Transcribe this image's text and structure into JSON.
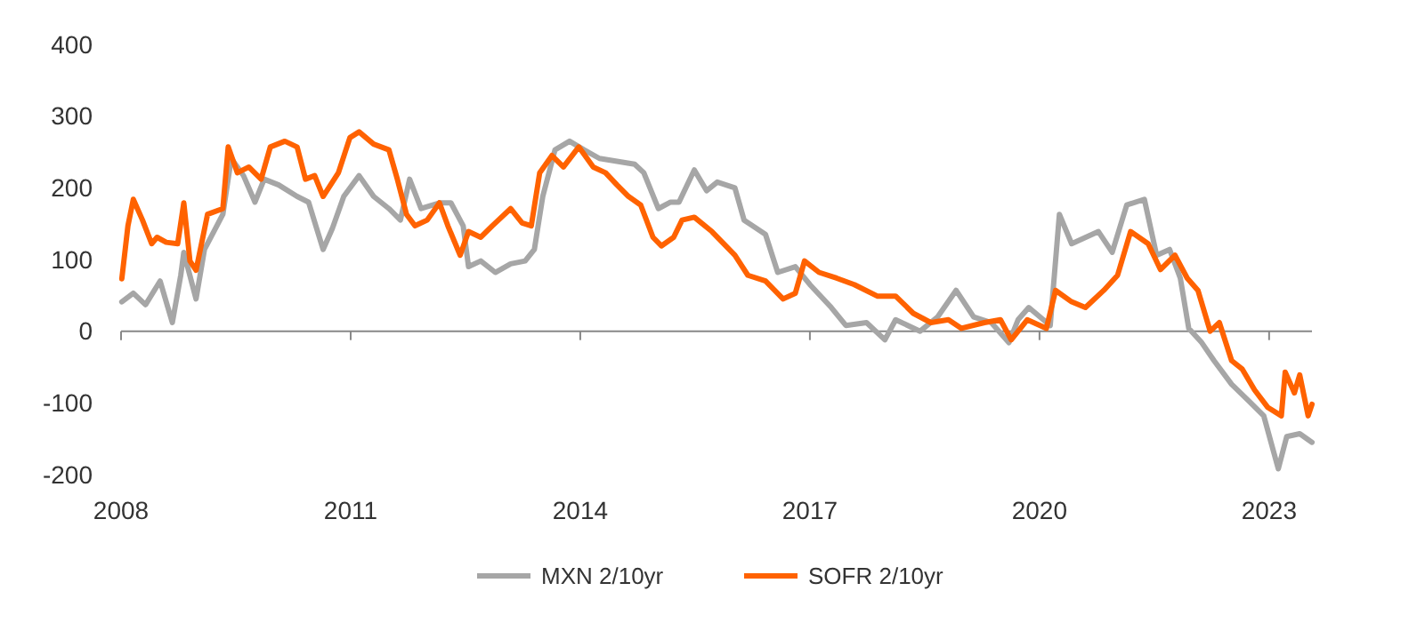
{
  "chart_data": {
    "type": "line",
    "xlim": [
      2008,
      2023.56
    ],
    "xticks": [
      2008,
      2011,
      2014,
      2017,
      2020,
      2023
    ],
    "ylim": [
      -200,
      400
    ],
    "yticks": [
      -200,
      -100,
      0,
      100,
      200,
      300,
      400
    ],
    "legend": "bottom",
    "line_style": "solid",
    "marker": "none",
    "series": [
      {
        "name": "MXN 2/10yr",
        "color": "#a6a6a6",
        "x": [
          2008.01,
          2008.16,
          2008.32,
          2008.51,
          2008.67,
          2008.78,
          2008.82,
          2008.98,
          2009.09,
          2009.33,
          2009.44,
          2009.6,
          2009.75,
          2009.87,
          2010.06,
          2010.3,
          2010.45,
          2010.64,
          2010.76,
          2010.91,
          2011.11,
          2011.3,
          2011.5,
          2011.65,
          2011.77,
          2011.92,
          2012.16,
          2012.31,
          2012.47,
          2012.54,
          2012.7,
          2012.89,
          2013.09,
          2013.28,
          2013.4,
          2013.51,
          2013.67,
          2013.86,
          2014.05,
          2014.25,
          2014.48,
          2014.71,
          2014.83,
          2015.02,
          2015.18,
          2015.29,
          2015.49,
          2015.65,
          2015.79,
          2016.02,
          2016.14,
          2016.42,
          2016.58,
          2016.81,
          2017.0,
          2017.28,
          2017.47,
          2017.74,
          2017.98,
          2018.12,
          2018.44,
          2018.67,
          2018.91,
          2019.14,
          2019.37,
          2019.6,
          2019.72,
          2019.86,
          2020.14,
          2020.26,
          2020.42,
          2020.77,
          2020.95,
          2021.14,
          2021.37,
          2021.53,
          2021.7,
          2021.84,
          2021.95,
          2022.12,
          2022.28,
          2022.51,
          2022.74,
          2022.93,
          2023.12,
          2023.23,
          2023.4,
          2023.56
        ],
        "values": [
          41,
          53,
          37,
          70,
          12,
          78,
          110,
          45,
          114,
          163,
          241,
          217,
          180,
          212,
          204,
          188,
          180,
          114,
          143,
          188,
          217,
          188,
          171,
          155,
          212,
          171,
          179,
          179,
          147,
          90,
          98,
          82,
          94,
          98,
          114,
          188,
          253,
          265,
          253,
          241,
          237,
          233,
          221,
          171,
          180,
          180,
          225,
          196,
          208,
          200,
          155,
          135,
          82,
          90,
          65,
          33,
          8,
          12,
          -12,
          16,
          0,
          20,
          57,
          20,
          12,
          -16,
          16,
          33,
          8,
          163,
          122,
          139,
          110,
          176,
          184,
          106,
          114,
          74,
          4,
          -16,
          -41,
          -74,
          -98,
          -118,
          -192,
          -147,
          -143,
          -155
        ]
      },
      {
        "name": "SOFR 2/10yr",
        "color": "#ff6200",
        "x": [
          2008.01,
          2008.09,
          2008.16,
          2008.28,
          2008.4,
          2008.47,
          2008.59,
          2008.74,
          2008.82,
          2008.9,
          2008.98,
          2009.13,
          2009.33,
          2009.4,
          2009.52,
          2009.67,
          2009.83,
          2009.95,
          2010.14,
          2010.3,
          2010.41,
          2010.53,
          2010.64,
          2010.84,
          2010.99,
          2011.11,
          2011.3,
          2011.5,
          2011.61,
          2011.73,
          2011.84,
          2012.0,
          2012.16,
          2012.27,
          2012.43,
          2012.54,
          2012.7,
          2012.85,
          2013.09,
          2013.24,
          2013.36,
          2013.47,
          2013.63,
          2013.78,
          2013.98,
          2014.17,
          2014.33,
          2014.48,
          2014.63,
          2014.79,
          2014.95,
          2015.06,
          2015.22,
          2015.33,
          2015.49,
          2015.72,
          2016.02,
          2016.19,
          2016.42,
          2016.65,
          2016.81,
          2016.93,
          2017.12,
          2017.35,
          2017.58,
          2017.88,
          2018.12,
          2018.35,
          2018.58,
          2018.81,
          2018.98,
          2019.28,
          2019.49,
          2019.63,
          2019.84,
          2020.09,
          2020.21,
          2020.42,
          2020.6,
          2020.84,
          2021.02,
          2021.19,
          2021.42,
          2021.58,
          2021.77,
          2021.93,
          2022.07,
          2022.23,
          2022.35,
          2022.51,
          2022.65,
          2022.81,
          2022.98,
          2023.16,
          2023.21,
          2023.33,
          2023.4,
          2023.51,
          2023.56
        ],
        "values": [
          73,
          147,
          184,
          155,
          122,
          131,
          124,
          122,
          179,
          98,
          85,
          163,
          171,
          257,
          221,
          229,
          212,
          257,
          265,
          257,
          212,
          217,
          188,
          221,
          270,
          278,
          261,
          253,
          212,
          163,
          147,
          155,
          179,
          147,
          106,
          139,
          131,
          147,
          171,
          151,
          147,
          221,
          245,
          229,
          257,
          229,
          221,
          204,
          188,
          176,
          131,
          119,
          131,
          155,
          159,
          139,
          106,
          78,
          70,
          45,
          53,
          98,
          82,
          74,
          65,
          49,
          49,
          25,
          12,
          16,
          4,
          12,
          16,
          -12,
          16,
          4,
          57,
          41,
          33,
          57,
          78,
          139,
          122,
          86,
          106,
          74,
          57,
          0,
          12,
          -41,
          -53,
          -82,
          -106,
          -118,
          -57,
          -86,
          -61,
          -118,
          -102
        ]
      }
    ]
  }
}
